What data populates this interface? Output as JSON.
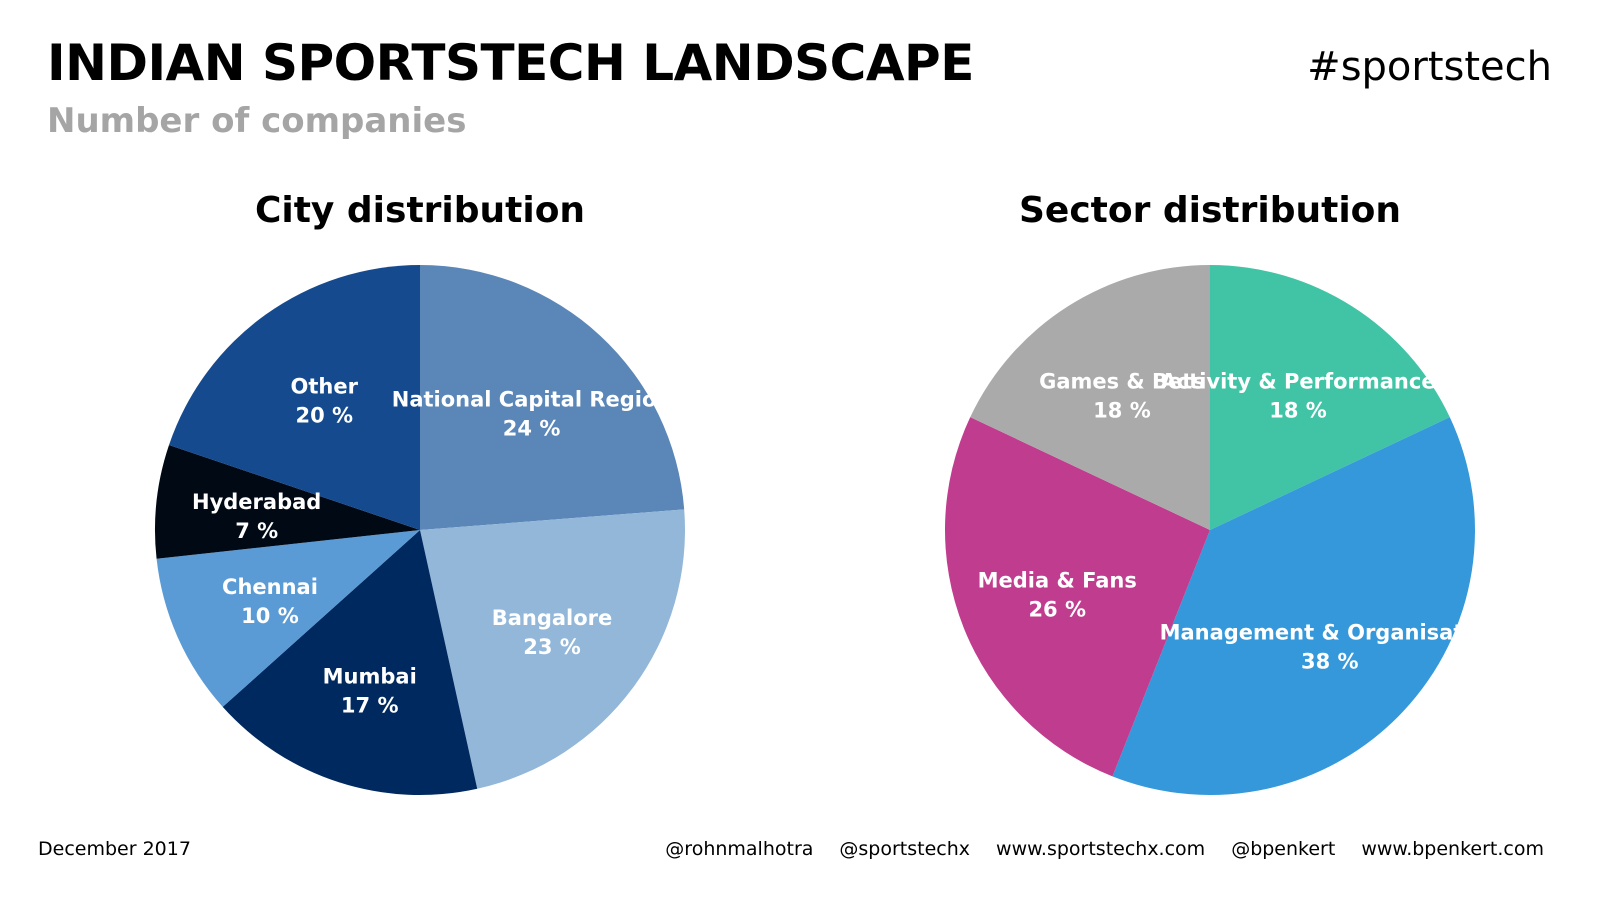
{
  "header": {
    "title": "INDIAN SPORTSTECH LANDSCAPE",
    "subtitle": "Number of companies",
    "hashtag": "#sportstech"
  },
  "chart_data": [
    {
      "type": "pie",
      "title": "City distribution",
      "slices": [
        {
          "name": "National Capital Region",
          "value": 24,
          "label": "24 %",
          "color": "#5b86b8"
        },
        {
          "name": "Bangalore",
          "value": 23,
          "label": "23 %",
          "color": "#92b7d9"
        },
        {
          "name": "Mumbai",
          "value": 17,
          "label": "17 %",
          "color": "#002960"
        },
        {
          "name": "Chennai",
          "value": 10,
          "label": "10 %",
          "color": "#5b9bd5"
        },
        {
          "name": "Hyderabad",
          "value": 7,
          "label": "7 %",
          "color": "#000914"
        },
        {
          "name": "Other",
          "value": 20,
          "label": "20 %",
          "color": "#154b8e"
        }
      ]
    },
    {
      "type": "pie",
      "title": "Sector distribution",
      "slices": [
        {
          "name": "Activity & Performance",
          "value": 18,
          "label": "18 %",
          "color": "#41c4a5"
        },
        {
          "name": "Management & Organisation",
          "value": 38,
          "label": "38 %",
          "color": "#3498db"
        },
        {
          "name": "Media & Fans",
          "value": 26,
          "label": "26 %",
          "color": "#c03c8e"
        },
        {
          "name": "Games & Bets",
          "value": 18,
          "label": "18 %",
          "color": "#aaaaaa"
        }
      ]
    }
  ],
  "footer": {
    "date": "December 2017",
    "links": [
      "@rohnmalhotra",
      "@sportstechx",
      "www.sportstechx.com",
      "@bpenkert",
      "www.bpenkert.com"
    ]
  }
}
